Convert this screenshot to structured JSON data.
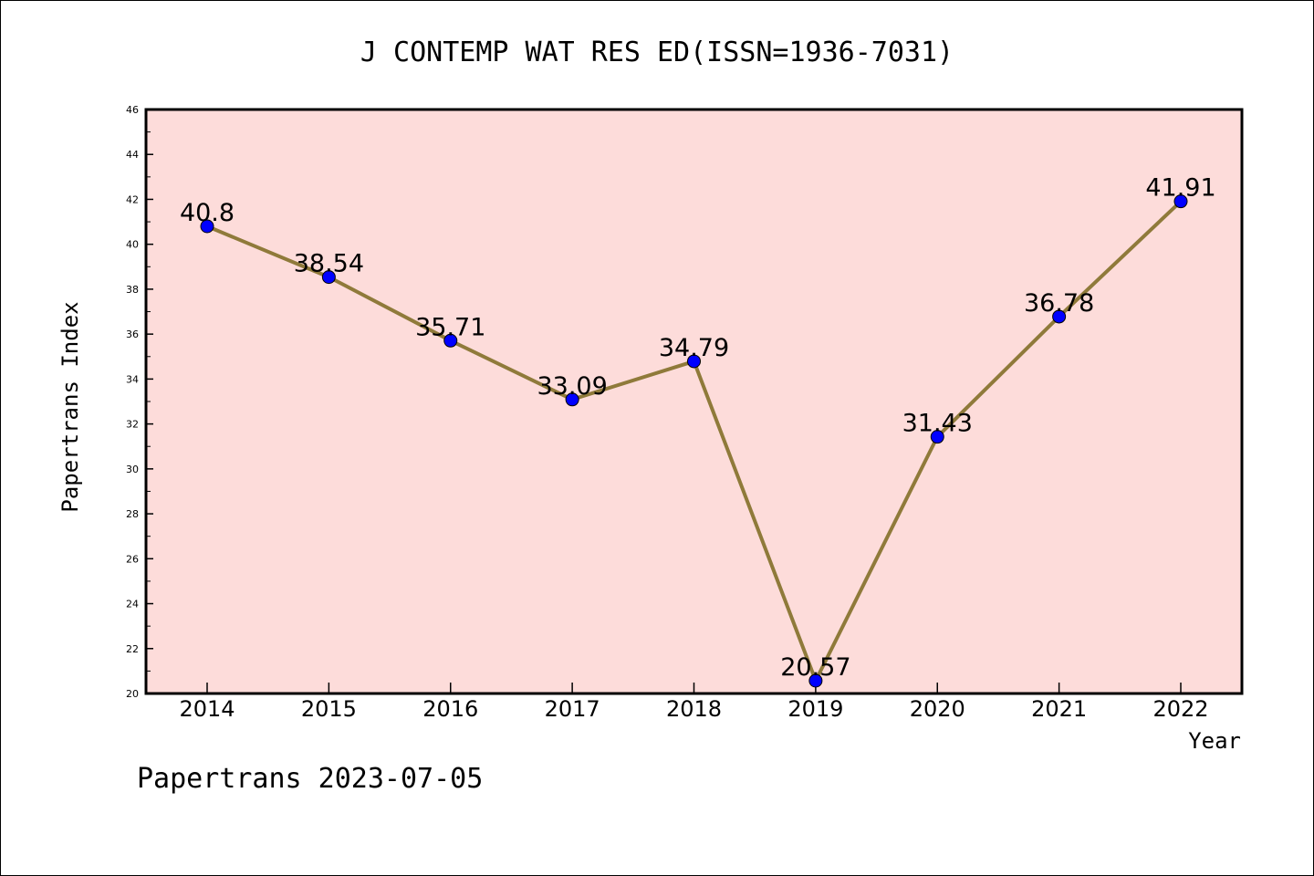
{
  "chart_data": {
    "type": "line",
    "title": "J CONTEMP WAT RES ED(ISSN=1936-7031)",
    "xlabel": "Year",
    "ylabel": "Papertrans Index",
    "footer": "Papertrans 2023-07-05",
    "categories": [
      "2014",
      "2015",
      "2016",
      "2017",
      "2018",
      "2019",
      "2020",
      "2021",
      "2022"
    ],
    "values": [
      40.8,
      38.54,
      35.71,
      33.09,
      34.79,
      20.57,
      31.43,
      36.78,
      41.91
    ],
    "value_labels": [
      "40.8",
      "38.54",
      "35.71",
      "33.09",
      "34.79",
      "20.57",
      "31.43",
      "36.78",
      "41.91"
    ],
    "ylim": [
      20,
      46
    ],
    "yticks": [
      "20",
      "22",
      "24",
      "26",
      "28",
      "30",
      "32",
      "34",
      "36",
      "38",
      "40",
      "42",
      "44",
      "46"
    ],
    "grid": false,
    "colors": {
      "plot_background": "#fddcda",
      "line": "#8f7a3a",
      "marker": "#0000ff",
      "axis": "#000000"
    }
  }
}
